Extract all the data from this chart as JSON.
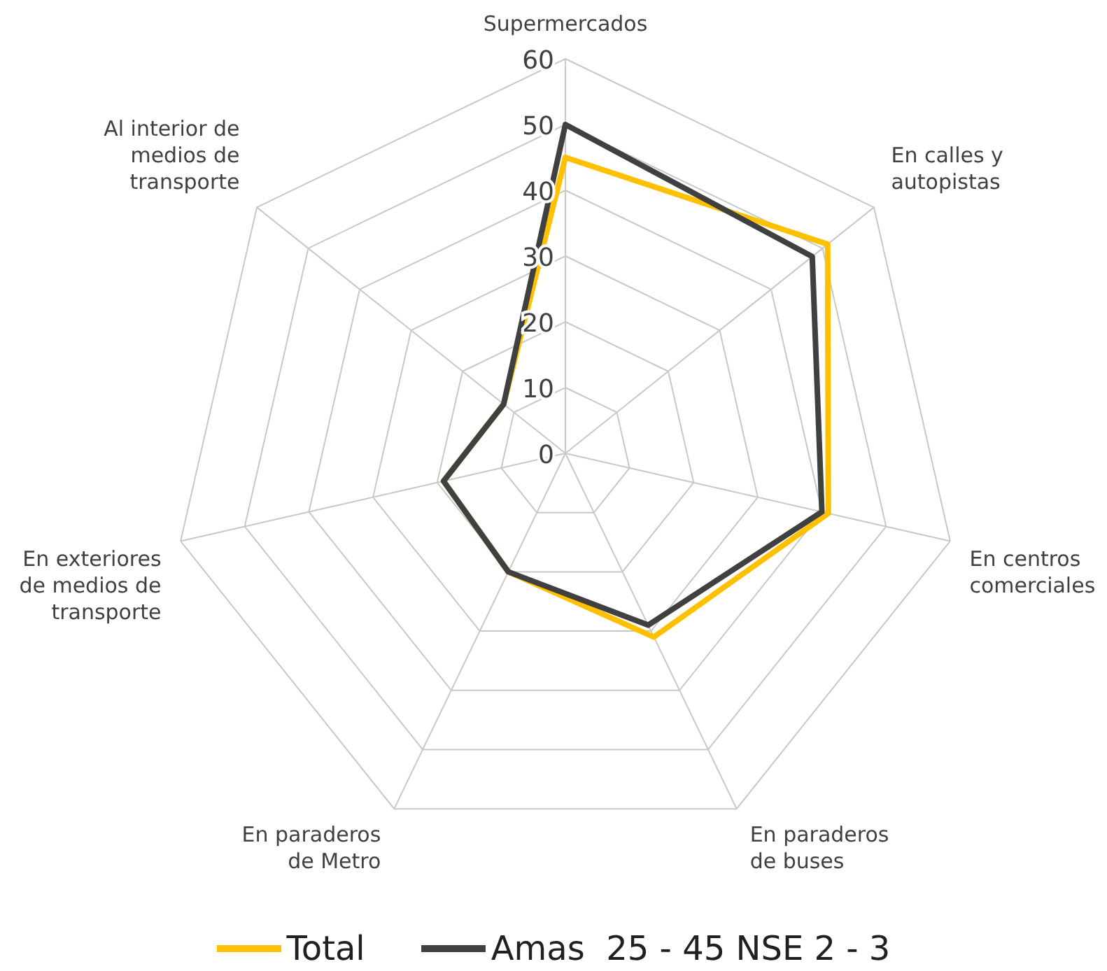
{
  "chart_data": {
    "type": "radar",
    "categories": [
      "Supermercados",
      "En calles y autopistas",
      "En centros comerciales",
      "En paraderos de buses",
      "En paraderos de Metro",
      "En exteriores de medios de transporte",
      "Al interior de medios de transporte"
    ],
    "series": [
      {
        "name": "Total",
        "color": "#ffc000",
        "values": [
          45,
          51,
          41,
          31,
          20,
          19,
          12
        ]
      },
      {
        "name": "Amas  25 - 45 NSE 2 - 3",
        "color": "#404040",
        "values": [
          50,
          48,
          40,
          29,
          20,
          19,
          12
        ]
      }
    ],
    "ylim": [
      0,
      60
    ],
    "yticks": [
      0,
      10,
      20,
      30,
      40,
      50,
      60
    ],
    "grid": true,
    "legend": "bottom"
  }
}
